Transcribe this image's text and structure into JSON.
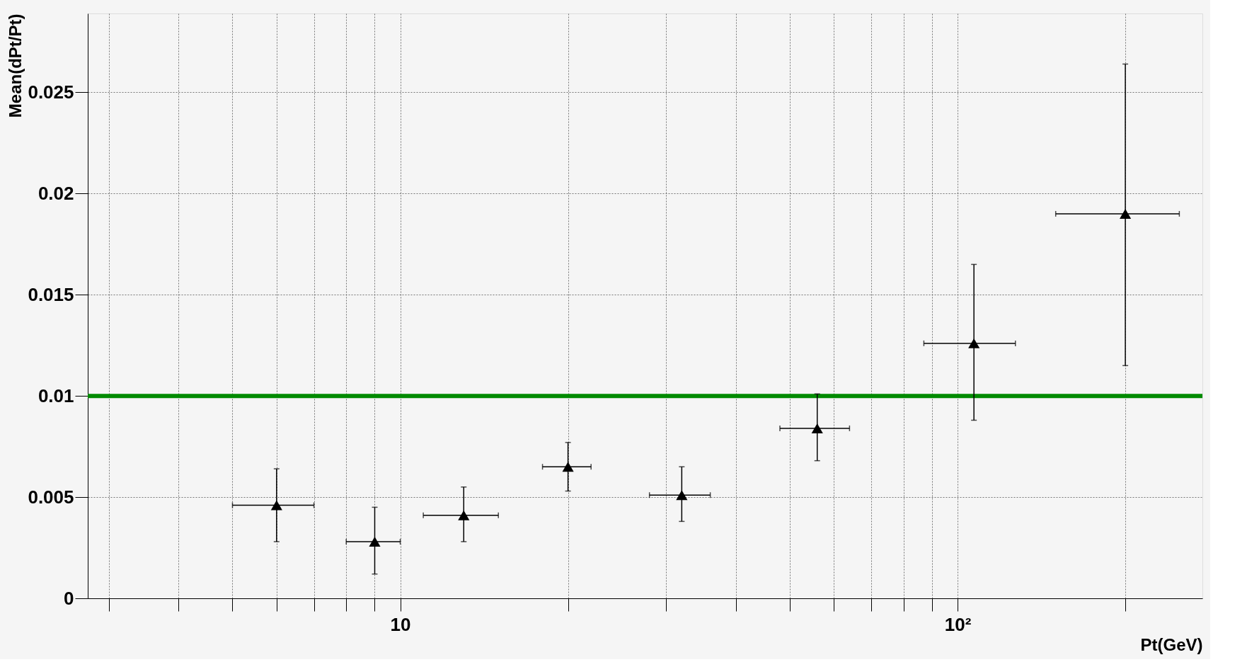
{
  "chart_data": {
    "type": "scatter",
    "xlabel": "Pt(GeV)",
    "ylabel": "Mean(dPt/Pt)",
    "x": [
      6,
      9,
      13,
      20,
      32,
      56,
      107,
      200
    ],
    "series": [
      {
        "color": "#000000",
        "values": [
          0.0046,
          0.0028,
          0.0041,
          0.0065,
          0.0051,
          0.0084,
          0.0126,
          0.019
        ],
        "errors": [
          [
            0.0028,
            0.0064
          ],
          [
            0.0012,
            0.0045
          ],
          [
            0.0028,
            0.0055
          ],
          [
            0.0053,
            0.0077
          ],
          [
            0.0038,
            0.0065
          ],
          [
            0.0068,
            0.0101
          ],
          [
            0.0088,
            0.0165
          ],
          [
            0.0115,
            0.0264
          ]
        ],
        "xerrors": [
          [
            5,
            7
          ],
          [
            8,
            10
          ],
          [
            11,
            15
          ],
          [
            18,
            22
          ],
          [
            28,
            36
          ],
          [
            48,
            64
          ],
          [
            87,
            127
          ],
          [
            150,
            250
          ]
        ]
      }
    ],
    "xlim": [
      2.75,
      275
    ],
    "ylim": [
      0,
      0.0289
    ],
    "xticks": [
      {
        "value": 3,
        "label": null
      },
      {
        "value": 4,
        "label": null
      },
      {
        "value": 5,
        "label": null
      },
      {
        "value": 6,
        "label": null
      },
      {
        "value": 7,
        "label": null
      },
      {
        "value": 8,
        "label": null
      },
      {
        "value": 9,
        "label": null
      },
      {
        "value": 10,
        "label": "10"
      },
      {
        "value": 20,
        "label": null
      },
      {
        "value": 30,
        "label": null
      },
      {
        "value": 40,
        "label": null
      },
      {
        "value": 50,
        "label": null
      },
      {
        "value": 60,
        "label": null
      },
      {
        "value": 70,
        "label": null
      },
      {
        "value": 80,
        "label": null
      },
      {
        "value": 90,
        "label": null
      },
      {
        "value": 100,
        "label": "10²"
      },
      {
        "value": 200,
        "label": null
      }
    ],
    "yticks": [
      0,
      0.005,
      0.01,
      0.015,
      0.02,
      0.025
    ],
    "log": "x",
    "grid": true,
    "marker": "triangle",
    "ref_lines": [
      {
        "axis": "y",
        "value": 0.01,
        "color": "#008a00"
      }
    ]
  }
}
